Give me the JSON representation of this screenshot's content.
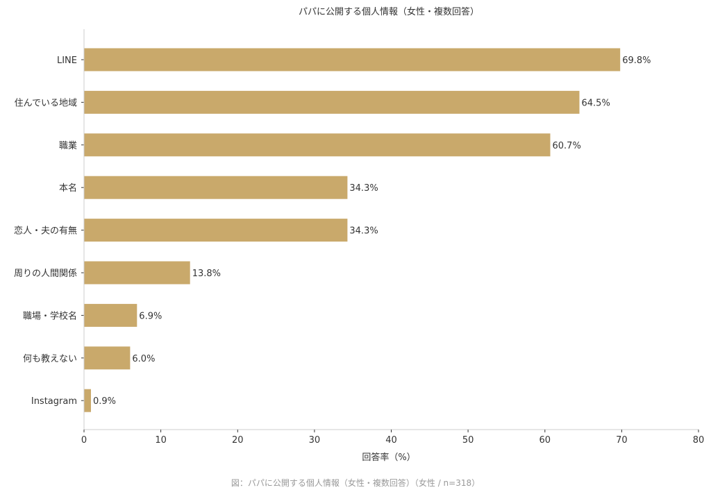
{
  "chart_data": {
    "type": "bar",
    "orientation": "horizontal",
    "title": "パパに公開する個人情報（女性・複数回答）",
    "xlabel": "回答率（%）",
    "ylabel": "",
    "xlim": [
      0,
      80
    ],
    "x_ticks": [
      0,
      10,
      20,
      30,
      40,
      50,
      60,
      70,
      80
    ],
    "categories": [
      "LINE",
      "住んでいる地域",
      "職業",
      "本名",
      "恋人・夫の有無",
      "周りの人間関係",
      "職場・学校名",
      "何も教えない",
      "Instagram"
    ],
    "values": [
      69.8,
      64.5,
      60.7,
      34.3,
      34.3,
      13.8,
      6.9,
      6.0,
      0.9
    ],
    "value_labels": [
      "69.8%",
      "64.5%",
      "60.7%",
      "34.3%",
      "34.3%",
      "13.8%",
      "6.9%",
      "6.0%",
      "0.9%"
    ],
    "bar_color": "#c9a96b",
    "grid": false,
    "caption": "図：パパに公開する個人情報（女性・複数回答）（女性 / n=318）"
  }
}
